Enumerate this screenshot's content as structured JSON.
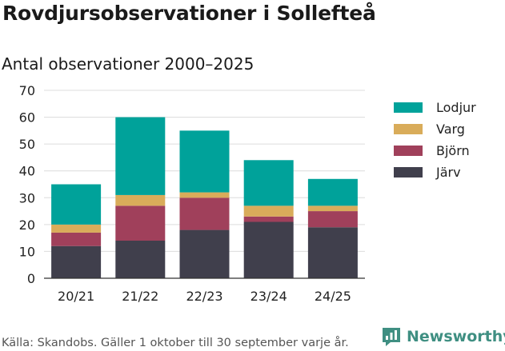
{
  "title": "Rovdjursobservationer i Sollefteå",
  "subtitle": "Antal observationer 2000–2025",
  "footer": "Källa: Skandobs. Gäller 1 oktober till 30 september varje år.",
  "brand": {
    "name": "Newsworthy",
    "icon": "newsworthy-logo-icon",
    "color": "#3f8f82"
  },
  "chart_data": {
    "type": "bar",
    "stacked": true,
    "title": "Rovdjursobservationer i Sollefteå",
    "subtitle": "Antal observationer 2000–2025",
    "xlabel": "",
    "ylabel": "",
    "ylim": [
      0,
      70
    ],
    "yticks": [
      0,
      10,
      20,
      30,
      40,
      50,
      60,
      70
    ],
    "grid": true,
    "legend_position": "right",
    "categories": [
      "20/21",
      "21/22",
      "22/23",
      "23/24",
      "24/25"
    ],
    "series": [
      {
        "name": "Järv",
        "color": "#403f4c",
        "values": [
          12,
          14,
          18,
          21,
          19
        ]
      },
      {
        "name": "Björn",
        "color": "#a0405b",
        "values": [
          5,
          13,
          12,
          2,
          6
        ]
      },
      {
        "name": "Varg",
        "color": "#d9ac5a",
        "values": [
          3,
          4,
          2,
          4,
          2
        ]
      },
      {
        "name": "Lodjur",
        "color": "#00a29a",
        "values": [
          15,
          29,
          23,
          17,
          10
        ]
      }
    ],
    "legend_order": [
      "Lodjur",
      "Varg",
      "Björn",
      "Järv"
    ]
  }
}
